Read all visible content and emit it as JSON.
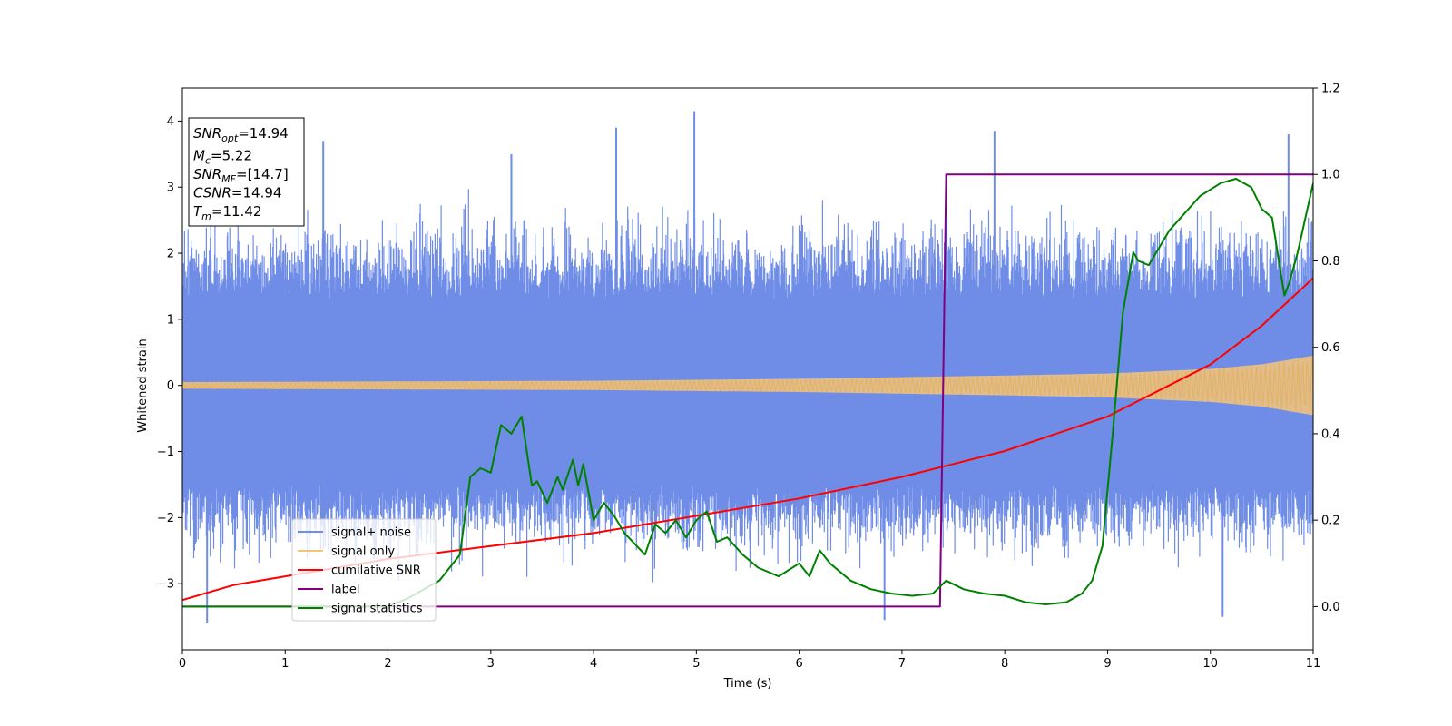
{
  "chart_data": {
    "type": "line",
    "xlabel": "Time (s)",
    "ylabel": "Whitened strain",
    "xlim": [
      0,
      11
    ],
    "ylim_left": [
      -4,
      4.5
    ],
    "ylim_right": [
      -0.1,
      1.2
    ],
    "x_ticks": [
      "0",
      "1",
      "2",
      "3",
      "4",
      "5",
      "6",
      "7",
      "8",
      "9",
      "10",
      "11"
    ],
    "y_ticks_left": [
      "−3",
      "−2",
      "−1",
      "0",
      "1",
      "2",
      "3",
      "4"
    ],
    "y_ticks_right": [
      "0.0",
      "0.2",
      "0.4",
      "0.6",
      "0.8",
      "1.0",
      "1.2"
    ],
    "legend_position": "lower-left",
    "legend": [
      {
        "label": "signal+ noise",
        "color": "#6f8de6"
      },
      {
        "label": "signal only",
        "color": "#f5c57a"
      },
      {
        "label": "cumilative SNR",
        "color": "#ff0000"
      },
      {
        "label": "label",
        "color": "#800080"
      },
      {
        "label": "signal statistics",
        "color": "#008000"
      }
    ],
    "info_box": [
      {
        "base": "SNR",
        "sub": "opt",
        "value": "=14.94"
      },
      {
        "base": "M",
        "sub": "c",
        "value": "=5.22"
      },
      {
        "base": "SNR",
        "sub": "MF",
        "value": "=[14.7]"
      },
      {
        "base": "CSNR",
        "sub": "",
        "value": "=14.94"
      },
      {
        "base": "T",
        "sub": "m",
        "value": "=11.42"
      }
    ],
    "series": [
      {
        "name": "signal+ noise",
        "axis": "left",
        "color": "#6f8de6",
        "description_band": [
          -1.5,
          1.3
        ],
        "notable_peaks": [
          {
            "x": 1.37,
            "y": 3.7
          },
          {
            "x": 3.2,
            "y": 3.5
          },
          {
            "x": 4.22,
            "y": 3.9
          },
          {
            "x": 4.98,
            "y": 4.15
          },
          {
            "x": 7.9,
            "y": 3.85
          },
          {
            "x": 10.76,
            "y": 3.8
          },
          {
            "x": 0.24,
            "y": -3.6
          },
          {
            "x": 6.83,
            "y": -3.55
          },
          {
            "x": 10.12,
            "y": -3.5
          }
        ]
      },
      {
        "name": "signal only",
        "axis": "left",
        "color": "#f5c57a",
        "envelope": {
          "x": [
            0,
            2,
            4,
            6,
            8,
            9,
            10,
            10.5,
            11
          ],
          "amp": [
            0.05,
            0.06,
            0.07,
            0.1,
            0.15,
            0.18,
            0.25,
            0.32,
            0.45
          ]
        }
      },
      {
        "name": "cumilative SNR",
        "axis": "right",
        "color": "#ff0000",
        "x": [
          0,
          0.5,
          1,
          2,
          3,
          4,
          5,
          6,
          7,
          7.5,
          8,
          8.5,
          9,
          9.5,
          10,
          10.5,
          11
        ],
        "y": [
          0.015,
          0.05,
          0.07,
          0.11,
          0.14,
          0.17,
          0.21,
          0.25,
          0.3,
          0.33,
          0.36,
          0.4,
          0.44,
          0.5,
          0.56,
          0.65,
          0.76
        ]
      },
      {
        "name": "label",
        "axis": "right",
        "color": "#800080",
        "x": [
          0,
          7.37,
          7.43,
          11
        ],
        "y": [
          0,
          0,
          1,
          1
        ]
      },
      {
        "name": "signal statistics",
        "axis": "right",
        "color": "#008000",
        "x": [
          0,
          1.5,
          2,
          2.2,
          2.5,
          2.7,
          2.8,
          2.9,
          3.0,
          3.1,
          3.2,
          3.3,
          3.4,
          3.45,
          3.55,
          3.65,
          3.7,
          3.8,
          3.85,
          3.9,
          4.0,
          4.1,
          4.2,
          4.3,
          4.5,
          4.6,
          4.7,
          4.8,
          4.9,
          5.0,
          5.1,
          5.2,
          5.3,
          5.45,
          5.6,
          5.8,
          6.0,
          6.1,
          6.2,
          6.3,
          6.5,
          6.7,
          6.9,
          7.1,
          7.3,
          7.43,
          7.6,
          7.8,
          8.0,
          8.2,
          8.4,
          8.6,
          8.75,
          8.85,
          8.95,
          9.05,
          9.15,
          9.25,
          9.3,
          9.4,
          9.5,
          9.6,
          9.75,
          9.9,
          10.1,
          10.25,
          10.4,
          10.5,
          10.6,
          10.72,
          10.77,
          10.85,
          11.0
        ],
        "y": [
          0.0,
          0.0,
          0.0,
          0.02,
          0.06,
          0.12,
          0.3,
          0.32,
          0.31,
          0.42,
          0.4,
          0.44,
          0.28,
          0.29,
          0.24,
          0.3,
          0.27,
          0.34,
          0.28,
          0.33,
          0.2,
          0.24,
          0.21,
          0.17,
          0.12,
          0.19,
          0.17,
          0.2,
          0.16,
          0.2,
          0.22,
          0.15,
          0.16,
          0.12,
          0.09,
          0.07,
          0.1,
          0.07,
          0.13,
          0.1,
          0.06,
          0.04,
          0.03,
          0.025,
          0.03,
          0.06,
          0.04,
          0.03,
          0.025,
          0.01,
          0.005,
          0.01,
          0.03,
          0.06,
          0.14,
          0.4,
          0.68,
          0.82,
          0.8,
          0.79,
          0.83,
          0.87,
          0.91,
          0.95,
          0.98,
          0.99,
          0.97,
          0.92,
          0.9,
          0.72,
          0.75,
          0.82,
          0.98
        ]
      }
    ]
  }
}
